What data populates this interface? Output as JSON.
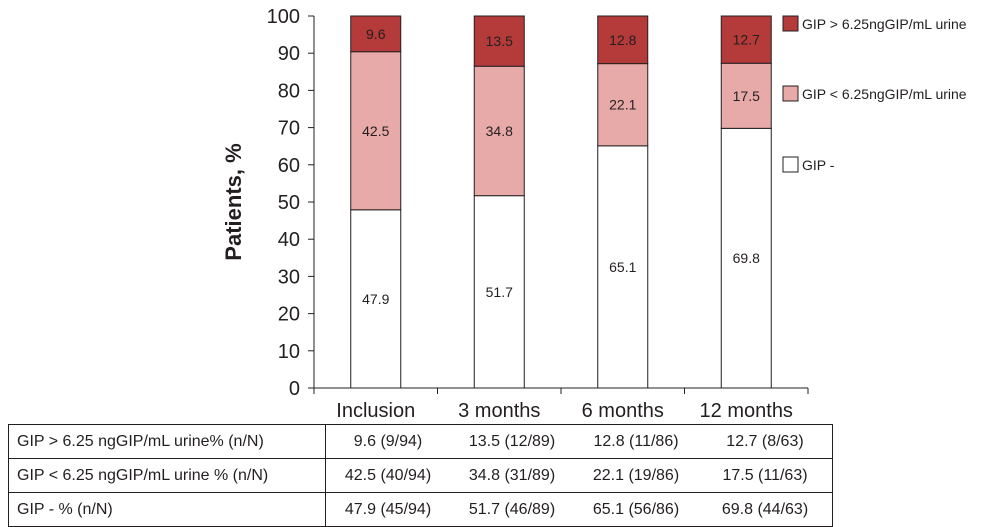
{
  "chart_data": {
    "type": "bar",
    "stacked": true,
    "title": "",
    "xlabel": "",
    "ylabel": "Patients, %",
    "ylim": [
      0,
      100
    ],
    "yticks": [
      0,
      10,
      20,
      30,
      40,
      50,
      60,
      70,
      80,
      90,
      100
    ],
    "categories": [
      "Inclusion",
      "3 months",
      "6 months",
      "12 months"
    ],
    "series": [
      {
        "name": "GIP -",
        "color": "#ffffff",
        "values": [
          47.9,
          51.7,
          65.1,
          69.8
        ],
        "labels": [
          "47.9",
          "51.7",
          "65.1",
          "69.8"
        ]
      },
      {
        "name": "GIP < 6.25ngGIP/mL urine",
        "color": "#e8a9a9",
        "values": [
          42.5,
          34.8,
          22.1,
          17.5
        ],
        "labels": [
          "42.5",
          "34.8",
          "22.1",
          "17.5"
        ]
      },
      {
        "name": "GIP > 6.25ngGIP/mL urine",
        "color": "#b53a3a",
        "values": [
          9.6,
          13.5,
          12.8,
          12.7
        ],
        "labels": [
          "9.6",
          "13.5",
          "12.8",
          "12.7"
        ]
      }
    ],
    "legend": {
      "position": "right",
      "order": [
        "GIP > 6.25ngGIP/mL urine",
        "GIP < 6.25ngGIP/mL urine",
        "GIP -"
      ]
    },
    "grid": false
  },
  "table": {
    "rows": [
      {
        "label": "GIP > 6.25 ngGIP/mL urine% (n/N)",
        "cells": [
          "9.6 (9/94)",
          "13.5 (12/89)",
          "12.8 (11/86)",
          "12.7 (8/63)"
        ]
      },
      {
        "label": "GIP < 6.25 ngGIP/mL urine % (n/N)",
        "cells": [
          "42.5 (40/94)",
          "34.8 (31/89)",
          "22.1 (19/86)",
          "17.5 (11/63)"
        ]
      },
      {
        "label": "GIP - % (n/N)",
        "cells": [
          "47.9 (45/94)",
          "51.7 (46/89)",
          "65.1 (56/86)",
          "69.8 (44/63)"
        ]
      }
    ]
  }
}
